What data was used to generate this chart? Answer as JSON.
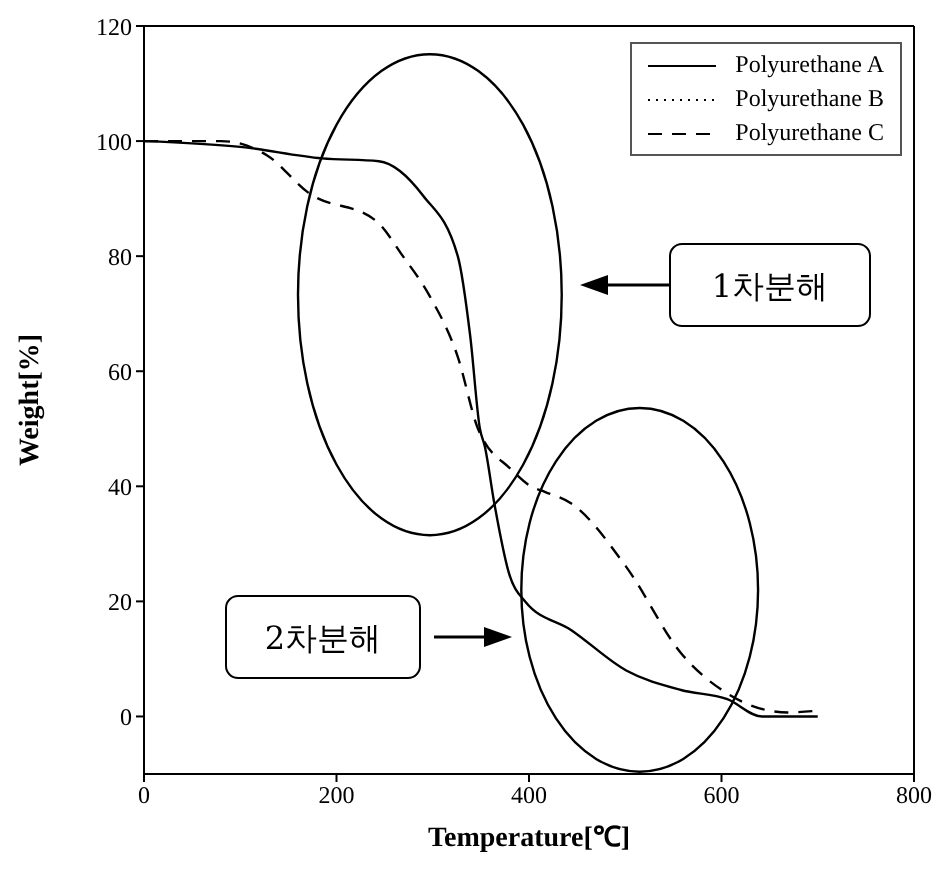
{
  "chart_data": {
    "type": "line",
    "xlabel": "Temperature[℃]",
    "ylabel": "Weight[%]",
    "xlim": [
      0,
      800
    ],
    "xticks": [
      0,
      200,
      400,
      600,
      800
    ],
    "ylim": [
      -10,
      120
    ],
    "yticks": [
      0,
      20,
      40,
      60,
      80,
      100,
      120
    ],
    "grid": false,
    "legend": "top right",
    "marker": "none",
    "series": [
      {
        "name": "Polyurethane A",
        "color": "#000000",
        "line_style": "solid",
        "x": [
          0,
          100,
          185,
          244,
          290,
          326,
          339,
          349,
          354,
          364,
          379,
          396,
          444,
          501,
          558,
          606,
          642,
          700
        ],
        "values": [
          100,
          99,
          97,
          96.5,
          90.5,
          80,
          66,
          50,
          47,
          37,
          25,
          20,
          15,
          8,
          4.6,
          3,
          0,
          0
        ]
      },
      {
        "name": "Polyurethane B",
        "color": "#000000",
        "line_style": "dotted"
      },
      {
        "name": "Polyurethane C",
        "color": "#000000",
        "line_style": "dashed",
        "x": [
          0,
          80,
          128,
          171,
          242,
          269,
          297,
          326,
          347,
          381,
          402,
          417,
          444,
          501,
          558,
          606,
          669,
          700
        ],
        "values": [
          100,
          100,
          97.5,
          91,
          86,
          80,
          73,
          62.5,
          50,
          43,
          40,
          39,
          37,
          26,
          11,
          4,
          0.7,
          1
        ]
      }
    ],
    "annotations": [
      "1차분해",
      "2차분해"
    ]
  }
}
